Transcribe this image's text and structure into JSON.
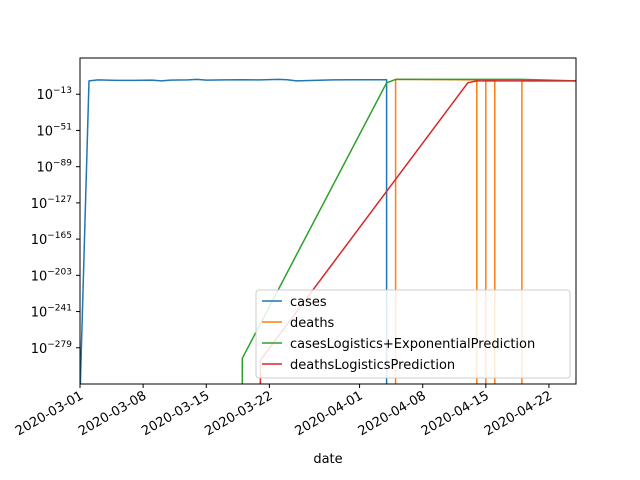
{
  "chart_data": {
    "type": "line",
    "title": "",
    "xlabel": "date",
    "ylabel": "",
    "yscale": "log",
    "ylim_exponent": [
      -317,
      25
    ],
    "xlim": [
      "2020-03-01",
      "2020-04-25"
    ],
    "grid": false,
    "legend_position": "lower-right",
    "x_ticks": [
      {
        "date": "2020-03-01",
        "label": "2020-03-01"
      },
      {
        "date": "2020-03-08",
        "label": "2020-03-08"
      },
      {
        "date": "2020-03-15",
        "label": "2020-03-15"
      },
      {
        "date": "2020-03-22",
        "label": "2020-03-22"
      },
      {
        "date": "2020-04-01",
        "label": "2020-04-01"
      },
      {
        "date": "2020-04-08",
        "label": "2020-04-08"
      },
      {
        "date": "2020-04-15",
        "label": "2020-04-15"
      },
      {
        "date": "2020-04-22",
        "label": "2020-04-22"
      }
    ],
    "y_ticks": [
      {
        "exp": -13,
        "base": "10",
        "sup": "−13"
      },
      {
        "exp": -51,
        "base": "10",
        "sup": "−51"
      },
      {
        "exp": -89,
        "base": "10",
        "sup": "−89"
      },
      {
        "exp": -127,
        "base": "10",
        "sup": "−127"
      },
      {
        "exp": -165,
        "base": "10",
        "sup": "−165"
      },
      {
        "exp": -203,
        "base": "10",
        "sup": "−203"
      },
      {
        "exp": -241,
        "base": "10",
        "sup": "−241"
      },
      {
        "exp": -279,
        "base": "10",
        "sup": "−279"
      }
    ],
    "series": [
      {
        "name": "cases",
        "color": "#1f77b4",
        "points": [
          [
            "2020-03-01",
            -330
          ],
          [
            "2020-03-02",
            1
          ],
          [
            "2020-03-03",
            2
          ],
          [
            "2020-03-05",
            1.5
          ],
          [
            "2020-03-07",
            1.5
          ],
          [
            "2020-03-09",
            1.8
          ],
          [
            "2020-03-10",
            1
          ],
          [
            "2020-03-11",
            1.8
          ],
          [
            "2020-03-13",
            2
          ],
          [
            "2020-03-14",
            2.5
          ],
          [
            "2020-03-15",
            1.8
          ],
          [
            "2020-03-17",
            2
          ],
          [
            "2020-03-19",
            2.2
          ],
          [
            "2020-03-21",
            2
          ],
          [
            "2020-03-23",
            2.5
          ],
          [
            "2020-03-24",
            2.2
          ],
          [
            "2020-03-25",
            1
          ],
          [
            "2020-03-27",
            1.5
          ],
          [
            "2020-03-29",
            2
          ],
          [
            "2020-03-31",
            2.2
          ],
          [
            "2020-04-02",
            2.2
          ],
          [
            "2020-04-04",
            2.2
          ],
          [
            "2020-04-04",
            -330
          ]
        ]
      },
      {
        "name": "deaths",
        "color": "#ff7f0e",
        "points": [
          [
            "2020-04-05",
            -330
          ],
          [
            "2020-04-05",
            2.5
          ],
          [
            "2020-04-06",
            2.5
          ],
          [
            "2020-04-14",
            2
          ],
          [
            "2020-04-14",
            -330
          ],
          [
            "2020-04-15",
            -330
          ],
          [
            "2020-04-15",
            2
          ],
          [
            "2020-04-16",
            2
          ],
          [
            "2020-04-16",
            -330
          ],
          [
            "2020-04-19",
            -330
          ],
          [
            "2020-04-19",
            1
          ],
          [
            "2020-04-25",
            1
          ]
        ]
      },
      {
        "name": "casesLogistics+ExponentialPrediction",
        "color": "#2ca02c",
        "points": [
          [
            "2020-03-19",
            -330
          ],
          [
            "2020-03-19",
            -290
          ],
          [
            "2020-04-04",
            -1
          ],
          [
            "2020-04-05",
            2.5
          ],
          [
            "2020-04-19",
            2.5
          ],
          [
            "2020-04-25",
            1
          ]
        ]
      },
      {
        "name": "deathsLogisticsPrediction",
        "color": "#d62728",
        "points": [
          [
            "2020-03-21",
            -330
          ],
          [
            "2020-03-21",
            -292
          ],
          [
            "2020-04-13",
            -1
          ],
          [
            "2020-04-14",
            1
          ],
          [
            "2020-04-25",
            1
          ]
        ]
      }
    ]
  }
}
